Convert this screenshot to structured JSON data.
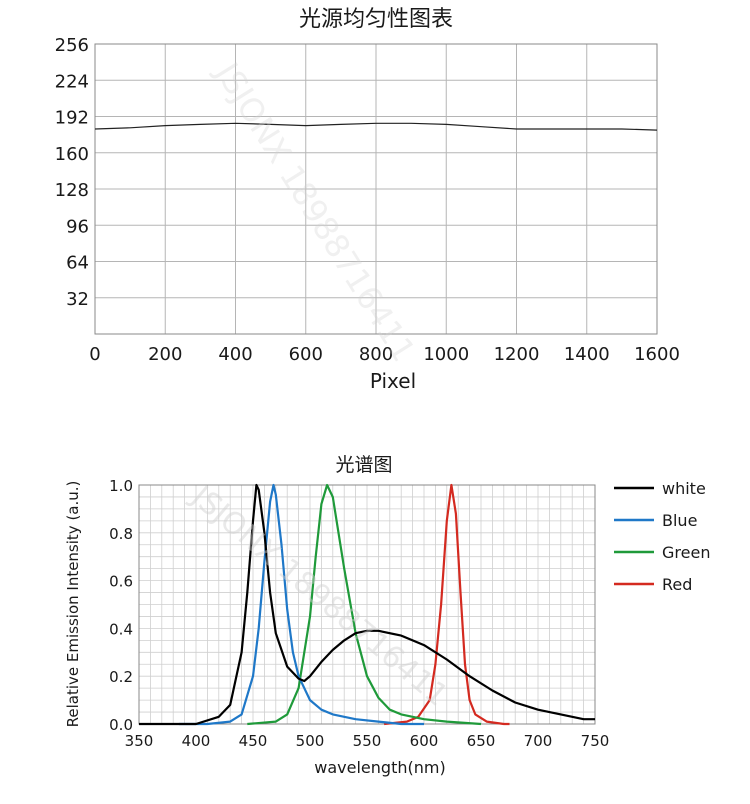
{
  "watermark": "JSJONX 18988716411",
  "chart_data": [
    {
      "type": "line",
      "title": "光源均匀性图表",
      "xlabel": "Pixel",
      "ylabel": "",
      "xlim": [
        0,
        1600
      ],
      "ylim": [
        0,
        256
      ],
      "x_ticks": [
        0,
        200,
        400,
        600,
        800,
        1000,
        1200,
        1400,
        1600
      ],
      "y_ticks": [
        32,
        64,
        96,
        128,
        160,
        192,
        224,
        256
      ],
      "grid": true,
      "line_color": "#222222",
      "series": [
        {
          "x": [
            0,
            100,
            200,
            300,
            400,
            500,
            600,
            700,
            800,
            900,
            1000,
            1100,
            1200,
            1300,
            1400,
            1500,
            1600
          ],
          "values": [
            181,
            182,
            184,
            185,
            186,
            185,
            184,
            185,
            186,
            186,
            185,
            183,
            181,
            181,
            181,
            181,
            180
          ]
        }
      ]
    },
    {
      "type": "line",
      "title": "光谱图",
      "xlabel": "wavelength(nm)",
      "ylabel": "Relative Emission Intensity (a.u.)",
      "xlim": [
        350,
        750
      ],
      "ylim": [
        0,
        1.0
      ],
      "x_ticks": [
        350,
        400,
        450,
        500,
        550,
        600,
        650,
        700,
        750
      ],
      "y_ticks": [
        0.0,
        0.2,
        0.4,
        0.6,
        0.8,
        1.0
      ],
      "grid": true,
      "legend_position": "right",
      "series": [
        {
          "name": "white",
          "color": "#000000",
          "x": [
            350,
            400,
            420,
            430,
            440,
            445,
            450,
            453,
            455,
            460,
            465,
            470,
            480,
            490,
            495,
            500,
            510,
            520,
            530,
            540,
            550,
            555,
            560,
            580,
            600,
            620,
            640,
            660,
            680,
            700,
            720,
            740,
            750
          ],
          "values": [
            0.0,
            0.0,
            0.03,
            0.08,
            0.3,
            0.55,
            0.85,
            1.0,
            0.98,
            0.8,
            0.55,
            0.38,
            0.24,
            0.19,
            0.18,
            0.2,
            0.26,
            0.31,
            0.35,
            0.38,
            0.39,
            0.39,
            0.39,
            0.37,
            0.33,
            0.27,
            0.2,
            0.14,
            0.09,
            0.06,
            0.04,
            0.02,
            0.02
          ]
        },
        {
          "name": "Blue",
          "color": "#1f78c8",
          "x": [
            385,
            410,
            430,
            440,
            450,
            455,
            460,
            465,
            468,
            470,
            475,
            480,
            485,
            490,
            500,
            510,
            520,
            540,
            560,
            580,
            600
          ],
          "values": [
            0.0,
            0.0,
            0.01,
            0.04,
            0.2,
            0.4,
            0.68,
            0.93,
            1.0,
            0.96,
            0.75,
            0.48,
            0.3,
            0.2,
            0.1,
            0.06,
            0.04,
            0.02,
            0.01,
            0.0,
            0.0
          ]
        },
        {
          "name": "Green",
          "color": "#1f9a3a",
          "x": [
            445,
            470,
            480,
            490,
            500,
            505,
            510,
            515,
            520,
            525,
            530,
            540,
            550,
            560,
            570,
            580,
            600,
            620,
            650
          ],
          "values": [
            0.0,
            0.01,
            0.04,
            0.15,
            0.45,
            0.7,
            0.92,
            1.0,
            0.95,
            0.8,
            0.65,
            0.38,
            0.2,
            0.11,
            0.06,
            0.04,
            0.02,
            0.01,
            0.0
          ]
        },
        {
          "name": "Red",
          "color": "#d42a20",
          "x": [
            565,
            585,
            595,
            605,
            610,
            615,
            620,
            624,
            628,
            632,
            636,
            640,
            645,
            655,
            670,
            675
          ],
          "values": [
            0.0,
            0.01,
            0.03,
            0.1,
            0.25,
            0.5,
            0.85,
            1.0,
            0.88,
            0.55,
            0.25,
            0.1,
            0.04,
            0.01,
            0.0,
            0.0
          ]
        }
      ]
    }
  ]
}
